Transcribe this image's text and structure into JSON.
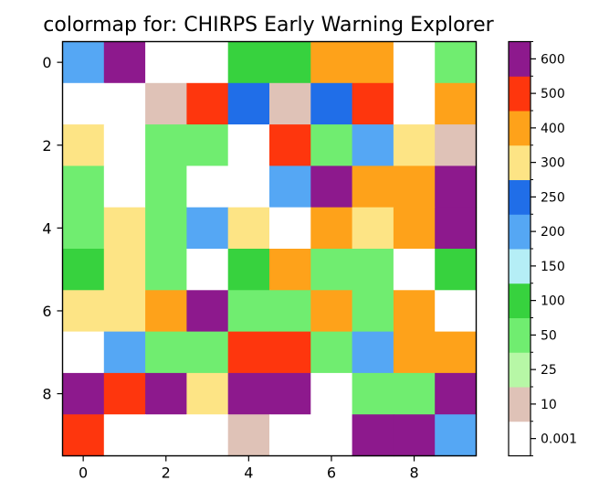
{
  "chart_data": {
    "type": "heatmap",
    "title": "colormap for: CHIRPS Early Warning Explorer",
    "xlabel": "",
    "ylabel": "",
    "x_ticks": [
      0,
      2,
      4,
      6,
      8
    ],
    "y_ticks": [
      0,
      2,
      4,
      6,
      8
    ],
    "grid": false,
    "colorbar": {
      "placement": "right",
      "tick_labels": [
        "0.001",
        "10",
        "25",
        "50",
        "100",
        "150",
        "200",
        "250",
        "300",
        "400",
        "500",
        "600"
      ],
      "bin_colors": [
        "#ffffff",
        "#dfc2b7",
        "#b7f7a6",
        "#70ed70",
        "#37d23e",
        "#b5eef6",
        "#55a7f4",
        "#206ee8",
        "#fde485",
        "#fea21a",
        "#fe360d",
        "#8d198d"
      ]
    },
    "rows": [
      [
        200,
        600,
        0,
        0,
        100,
        100,
        400,
        400,
        0,
        50
      ],
      [
        0,
        0,
        10,
        500,
        250,
        10,
        250,
        500,
        0,
        400
      ],
      [
        300,
        0,
        50,
        50,
        0,
        500,
        50,
        200,
        300,
        10
      ],
      [
        50,
        0,
        50,
        0,
        0,
        200,
        600,
        400,
        400,
        600
      ],
      [
        50,
        300,
        50,
        200,
        300,
        0,
        400,
        300,
        400,
        600
      ],
      [
        100,
        300,
        50,
        0,
        100,
        400,
        50,
        50,
        0,
        100
      ],
      [
        300,
        300,
        400,
        600,
        50,
        50,
        400,
        50,
        400,
        0
      ],
      [
        0,
        200,
        50,
        50,
        500,
        500,
        50,
        200,
        400,
        400
      ],
      [
        600,
        500,
        600,
        300,
        600,
        600,
        0,
        50,
        50,
        600
      ],
      [
        500,
        0,
        0,
        0,
        10,
        0,
        0,
        600,
        600,
        200
      ]
    ]
  }
}
